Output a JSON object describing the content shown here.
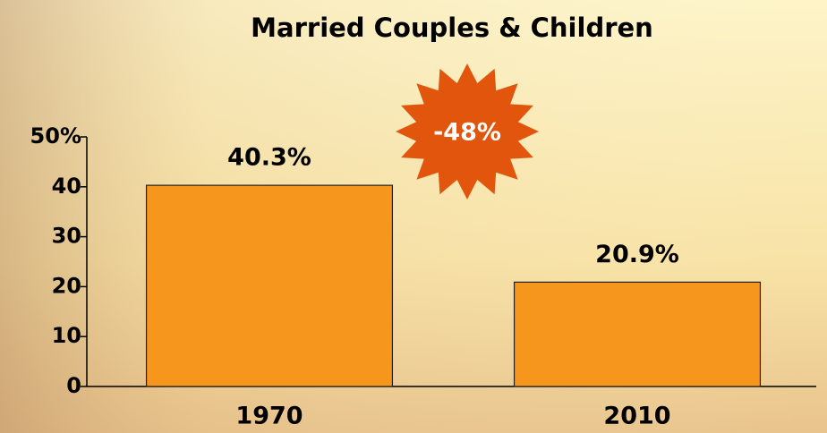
{
  "chart_data": {
    "type": "bar",
    "title": "Married Couples & Children",
    "categories": [
      "1970",
      "2010"
    ],
    "values": [
      40.3,
      20.9
    ],
    "value_labels": [
      "40.3%",
      "20.9%"
    ],
    "color": "#f7961d",
    "annotation": "-48%",
    "annotation_color": "#e2550c",
    "ylim": [
      0,
      50
    ],
    "yticks": [
      0,
      10,
      20,
      30,
      40,
      {
        "value": 50,
        "label": "50%"
      }
    ],
    "grid": false
  }
}
